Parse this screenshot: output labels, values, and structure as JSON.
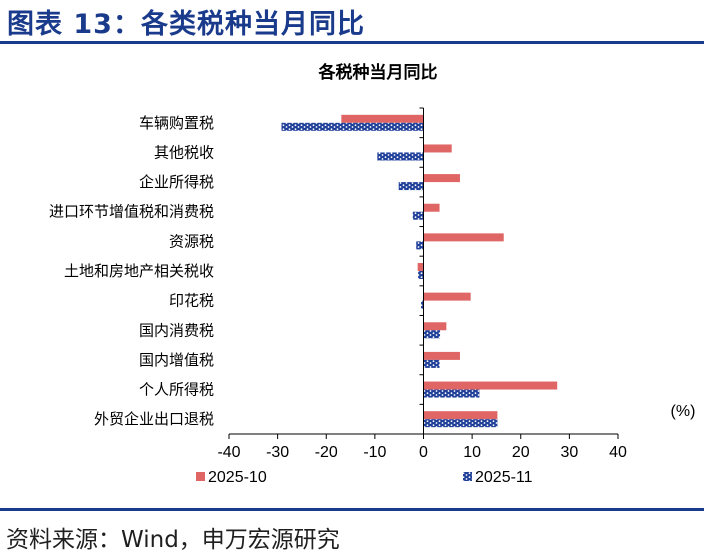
{
  "header": {
    "figure_title": "图表 13：各类税种当月同比"
  },
  "footer": {
    "source": "资料来源：Wind，申万宏源研究"
  },
  "colors": {
    "brand": "#1a3a8c",
    "series_2025_10": "#e06666",
    "series_2025_11": "#1f3f99"
  },
  "chart_data": {
    "type": "bar",
    "orientation": "horizontal",
    "title": "各税种当月同比",
    "unit_label": "(%)",
    "xlim": [
      -40,
      40
    ],
    "xticks": [
      -40,
      -30,
      -20,
      -10,
      0,
      10,
      20,
      30,
      40
    ],
    "grid": false,
    "legend_position": "bottom",
    "categories": [
      "车辆购置税",
      "其他税收",
      "企业所得税",
      "进口环节增值税和消费税",
      "资源税",
      "土地和房地产相关税收",
      "印花税",
      "国内消费税",
      "国内增值税",
      "个人所得税",
      "外贸企业出口退税"
    ],
    "series": [
      {
        "name": "2025-10",
        "pattern": "solid",
        "values": [
          -16.9,
          5.8,
          7.5,
          3.3,
          16.5,
          -1.2,
          9.7,
          4.7,
          7.5,
          27.5,
          15.2
        ]
      },
      {
        "name": "2025-11",
        "pattern": "dotted",
        "values": [
          -29.2,
          -9.5,
          -5.1,
          -2.2,
          -1.5,
          -1.1,
          -0.5,
          3.4,
          3.3,
          11.5,
          15.2
        ]
      }
    ]
  }
}
